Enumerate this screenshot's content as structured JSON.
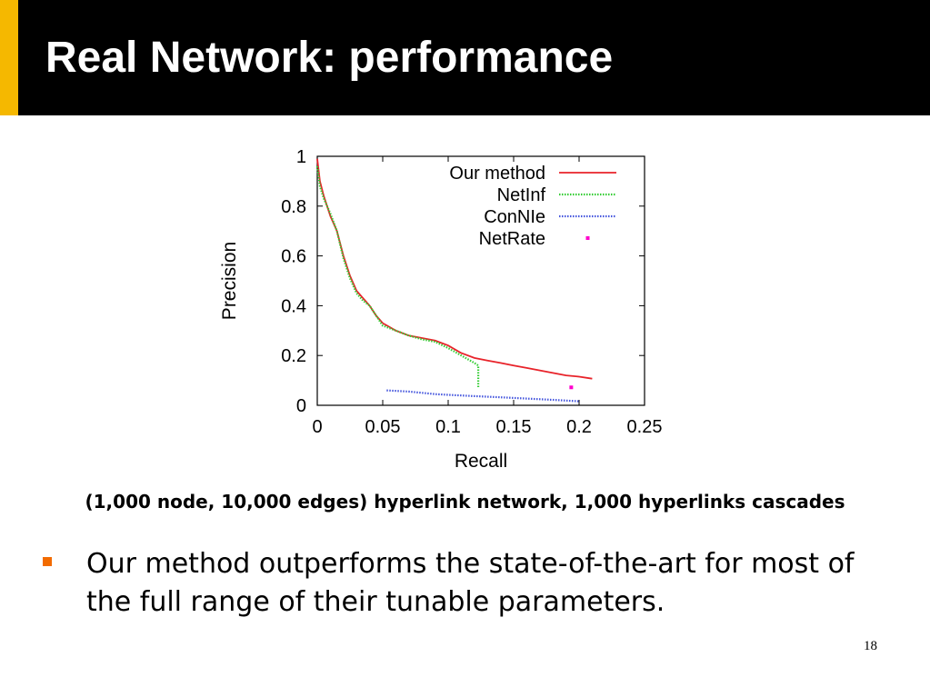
{
  "slide": {
    "title": "Real Network: performance",
    "caption": "(1,000 node, 10,000 edges) hyperlink network, 1,000 hyperlinks cascades",
    "bullet": "Our method outperforms the state-of-the-art for most of the full range of their tunable parameters.",
    "page_number": "18",
    "colors": {
      "title_bar": "#000000",
      "accent": "#f5b800",
      "bullet_marker": "#f26b00"
    }
  },
  "chart_data": {
    "type": "line",
    "title": "",
    "xlabel": "Recall",
    "ylabel": "Precision",
    "xlim": [
      0,
      0.25
    ],
    "ylim": [
      0,
      1
    ],
    "xticks": [
      "0",
      "0.05",
      "0.1",
      "0.15",
      "0.2",
      "0.25"
    ],
    "yticks": [
      "0",
      "0.2",
      "0.4",
      "0.6",
      "0.8",
      "1"
    ],
    "grid": false,
    "legend_position": "top-right",
    "series": [
      {
        "name": "Our method",
        "color": "#e8232a",
        "style": "solid",
        "points": [
          [
            0,
            0.99
          ],
          [
            0.002,
            0.9
          ],
          [
            0.005,
            0.84
          ],
          [
            0.01,
            0.76
          ],
          [
            0.015,
            0.7
          ],
          [
            0.02,
            0.6
          ],
          [
            0.025,
            0.52
          ],
          [
            0.03,
            0.46
          ],
          [
            0.035,
            0.43
          ],
          [
            0.04,
            0.4
          ],
          [
            0.045,
            0.36
          ],
          [
            0.05,
            0.33
          ],
          [
            0.06,
            0.3
          ],
          [
            0.07,
            0.28
          ],
          [
            0.08,
            0.27
          ],
          [
            0.09,
            0.26
          ],
          [
            0.1,
            0.24
          ],
          [
            0.11,
            0.21
          ],
          [
            0.12,
            0.19
          ],
          [
            0.13,
            0.18
          ],
          [
            0.14,
            0.17
          ],
          [
            0.15,
            0.16
          ],
          [
            0.16,
            0.15
          ],
          [
            0.17,
            0.14
          ],
          [
            0.18,
            0.13
          ],
          [
            0.19,
            0.12
          ],
          [
            0.2,
            0.115
          ],
          [
            0.21,
            0.107
          ]
        ]
      },
      {
        "name": "NetInf",
        "color": "#33cc33",
        "style": "dotted",
        "points": [
          [
            0,
            0.96
          ],
          [
            0.002,
            0.88
          ],
          [
            0.005,
            0.83
          ],
          [
            0.01,
            0.77
          ],
          [
            0.015,
            0.7
          ],
          [
            0.02,
            0.59
          ],
          [
            0.025,
            0.51
          ],
          [
            0.03,
            0.45
          ],
          [
            0.035,
            0.42
          ],
          [
            0.04,
            0.4
          ],
          [
            0.045,
            0.36
          ],
          [
            0.05,
            0.32
          ],
          [
            0.06,
            0.3
          ],
          [
            0.07,
            0.28
          ],
          [
            0.08,
            0.265
          ],
          [
            0.09,
            0.255
          ],
          [
            0.1,
            0.23
          ],
          [
            0.11,
            0.2
          ],
          [
            0.12,
            0.17
          ],
          [
            0.123,
            0.16
          ],
          [
            0.123,
            0.07
          ]
        ]
      },
      {
        "name": "ConNIe",
        "color": "#4455dd",
        "style": "dotted",
        "points": [
          [
            0.053,
            0.06
          ],
          [
            0.07,
            0.055
          ],
          [
            0.08,
            0.05
          ],
          [
            0.09,
            0.045
          ],
          [
            0.1,
            0.042
          ],
          [
            0.12,
            0.037
          ],
          [
            0.14,
            0.032
          ],
          [
            0.16,
            0.027
          ],
          [
            0.18,
            0.022
          ],
          [
            0.2,
            0.016
          ]
        ]
      },
      {
        "name": "NetRate",
        "color": "#ff00cc",
        "style": "point",
        "points": [
          [
            0.194,
            0.072
          ]
        ]
      }
    ]
  }
}
